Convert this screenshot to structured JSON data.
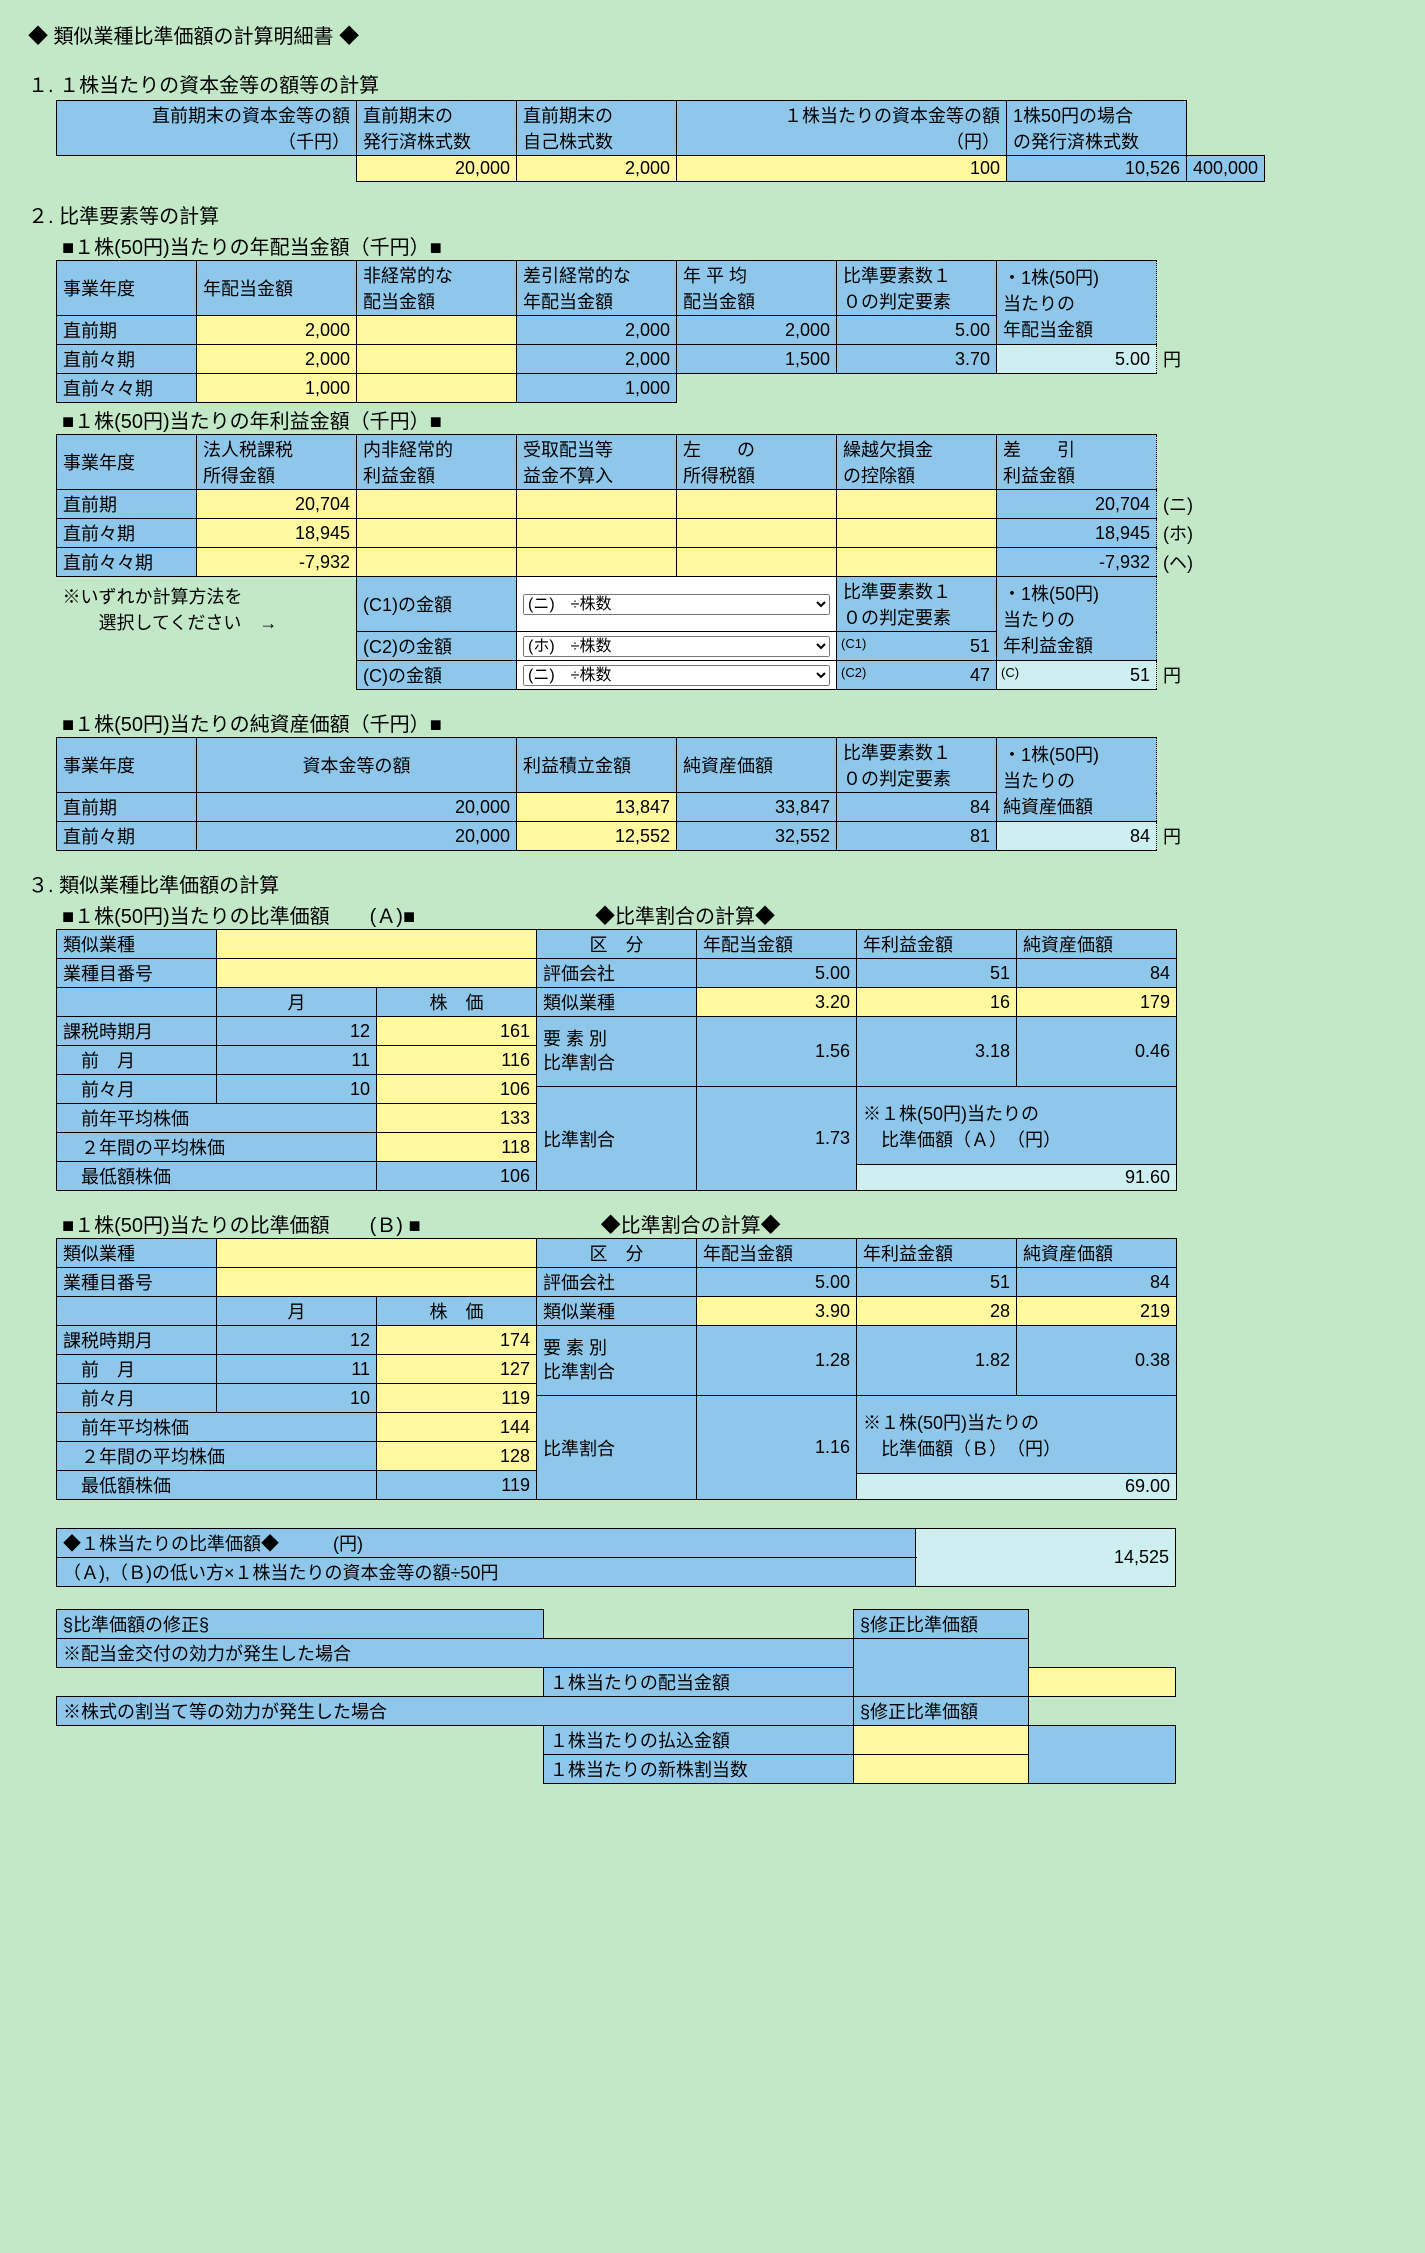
{
  "title": "◆ 類似業種比準価額の計算明細書 ◆",
  "s1": {
    "heading": "１. １株当たりの資本金等の額等の計算",
    "cols": [
      "直前期末の資本金等の額\n（千円）",
      "直前期末の\n発行済株式数",
      "直前期末の\n自己株式数",
      "１株当たりの資本金等の額\n（円）",
      "1株50円の場合\nの発行済株式数"
    ],
    "vals": [
      "20,000",
      "2,000",
      "100",
      "10,526",
      "400,000"
    ]
  },
  "s2": {
    "heading": "２. 比準要素等の計算",
    "sub1": "■１株(50円)当たりの年配当金額（千円）■",
    "sub2": "■１株(50円)当たりの年利益金額（千円）■",
    "sub3": "■１株(50円)当たりの純資産価額（千円）■",
    "t1": {
      "cols": [
        "事業年度",
        "年配当金額",
        "非経常的な\n配当金額",
        "差引経常的な\n年配当金額",
        "年 平 均\n配当金額",
        "比準要素数１\n０の判定要素",
        "・1株(50円)\n当たりの\n年配当金額"
      ],
      "rows": [
        [
          "直前期",
          "2,000",
          "",
          "2,000",
          "2,000",
          "5.00"
        ],
        [
          "直前々期",
          "2,000",
          "",
          "2,000",
          "1,500",
          "3.70"
        ],
        [
          "直前々々期",
          "1,000",
          "",
          "1,000",
          "",
          "",
          ""
        ]
      ],
      "result": "5.00",
      "unit": "円"
    },
    "t2": {
      "cols": [
        "事業年度",
        "法人税課税\n所得金額",
        "内非経常的\n利益金額",
        "受取配当等\n益金不算入",
        "左　　の\n所得税額",
        "繰越欠損金\nの控除額",
        "差　　引\n利益金額"
      ],
      "rows": [
        [
          "直前期",
          "20,704",
          "",
          "",
          "",
          "",
          "20,704",
          "(ニ)"
        ],
        [
          "直前々期",
          "18,945",
          "",
          "",
          "",
          "",
          "18,945",
          "(ホ)"
        ],
        [
          "直前々々期",
          "-7,932",
          "",
          "",
          "",
          "",
          "-7,932",
          "(ヘ)"
        ]
      ],
      "note": "※いずれか計算方法を\n　　選択してください　→",
      "selrows": [
        [
          "(C1)の金額",
          "(ニ)　÷株数"
        ],
        [
          "(C2)の金額",
          "(ホ)　÷株数"
        ],
        [
          "(C)の金額",
          "(ニ)　÷株数"
        ]
      ],
      "judge_h": "比準要素数１\n０の判定要素",
      "per_h": "・1株(50円)\n当たりの\n年利益金額",
      "c1": "51",
      "c2": "47",
      "c": "51",
      "unit": "円",
      "c1l": "(C1)",
      "c2l": "(C2)",
      "cl": "(C)"
    },
    "t3": {
      "cols": [
        "事業年度",
        "資本金等の額",
        "利益積立金額",
        "純資産価額"
      ],
      "rows": [
        [
          "直前期",
          "20,000",
          "13,847",
          "33,847",
          "84"
        ],
        [
          "直前々期",
          "20,000",
          "12,552",
          "32,552",
          "81"
        ]
      ],
      "judge_h": "比準要素数１\n０の判定要素",
      "per_h": "・1株(50円)\n当たりの\n純資産価額",
      "result": "84",
      "unit": "円"
    }
  },
  "s3": {
    "heading": "３. 類似業種比準価額の計算",
    "subA": "■１株(50円)当たりの比準価額　　(Ａ)■",
    "subB": "■１株(50円)当たりの比準価額　　(Ｂ) ■",
    "ratio_h": "◆比準割合の計算◆",
    "left_cols": [
      "類似業種",
      "業種目番号",
      "",
      "課税時期月",
      "　前　月",
      "　前々月",
      "　前年平均株価",
      "　２年間の平均株価",
      "　最低額株価"
    ],
    "mh_cols": [
      "月",
      "株　価"
    ],
    "right_cols": [
      "区　分",
      "年配当金額",
      "年利益金額",
      "純資産価額"
    ],
    "right_rows": [
      "評価会社",
      "類似業種",
      "要 素 別\n比準割合",
      "比準割合"
    ],
    "note_label": "※１株(50円)当たりの\n　比準価額（{X}）　（円）",
    "A": {
      "months": [
        "12",
        "11",
        "10"
      ],
      "prices": [
        "161",
        "116",
        "106",
        "133",
        "118",
        "106"
      ],
      "eval": [
        "5.00",
        "51",
        "84"
      ],
      "sim": [
        "3.20",
        "16",
        "179"
      ],
      "elem": [
        "1.56",
        "3.18",
        "0.46"
      ],
      "ratio": "1.73",
      "result": "91.60"
    },
    "B": {
      "months": [
        "12",
        "11",
        "10"
      ],
      "prices": [
        "174",
        "127",
        "119",
        "144",
        "128",
        "119"
      ],
      "eval": [
        "5.00",
        "51",
        "84"
      ],
      "sim": [
        "3.90",
        "28",
        "219"
      ],
      "elem": [
        "1.28",
        "1.82",
        "0.38"
      ],
      "ratio": "1.16",
      "result": "69.00"
    }
  },
  "s4": {
    "h": "◆１株当たりの比準価額◆　　　(円)",
    "desc": "（Ａ),（Ｂ)の低い方×１株当たりの資本金等の額÷50円",
    "val": "14,525"
  },
  "s5": {
    "h1": "§比準価額の修正§",
    "h2": "§修正比準価額",
    "r1": "※配当金交付の効力が発生した場合",
    "r1a": "１株当たりの配当金額",
    "r2": "※株式の割当て等の効力が発生した場合",
    "r2a": "１株当たりの払込金額",
    "r2b": "１株当たりの新株割当数"
  }
}
